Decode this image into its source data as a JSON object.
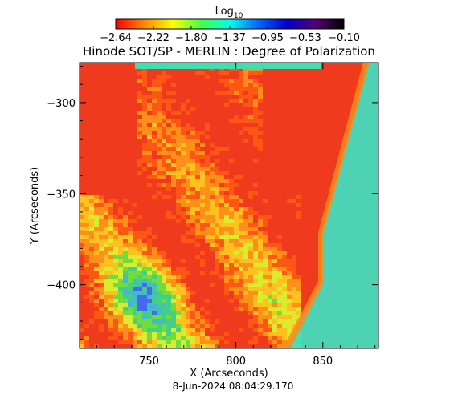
{
  "chart_data": {
    "type": "heatmap",
    "title": "Hinode SOT/SP - MERLIN : Degree of Polarization",
    "xlabel": "X (Arcseconds)",
    "ylabel": "Y (Arcseconds)",
    "xlim": [
      710,
      882
    ],
    "ylim": [
      -435,
      -278
    ],
    "x_ticks": [
      {
        "value": 750,
        "label": "750"
      },
      {
        "value": 800,
        "label": "800"
      },
      {
        "value": 850,
        "label": "850"
      }
    ],
    "y_ticks": [
      {
        "value": -300,
        "label": "−300"
      },
      {
        "value": -350,
        "label": "−350"
      },
      {
        "value": -400,
        "label": "−400"
      }
    ],
    "colorbar": {
      "title_base": "Log",
      "title_sub": "10",
      "range": [
        -2.64,
        -0.1
      ],
      "ticks": [
        {
          "value": -2.64,
          "label": "−2.64"
        },
        {
          "value": -2.22,
          "label": "−2.22"
        },
        {
          "value": -1.8,
          "label": "−1.80"
        },
        {
          "value": -1.37,
          "label": "−1.37"
        },
        {
          "value": -0.95,
          "label": "−0.95"
        },
        {
          "value": -0.53,
          "label": "−0.53"
        },
        {
          "value": -0.1,
          "label": "−0.10"
        }
      ],
      "colors": [
        "#ff0000",
        "#ff8800",
        "#ffff00",
        "#44ff44",
        "#00ffee",
        "#0066ff",
        "#0000cc",
        "#550077",
        "#000000"
      ]
    },
    "timestamp": "8-Jun-2024 08:04:29.170"
  }
}
